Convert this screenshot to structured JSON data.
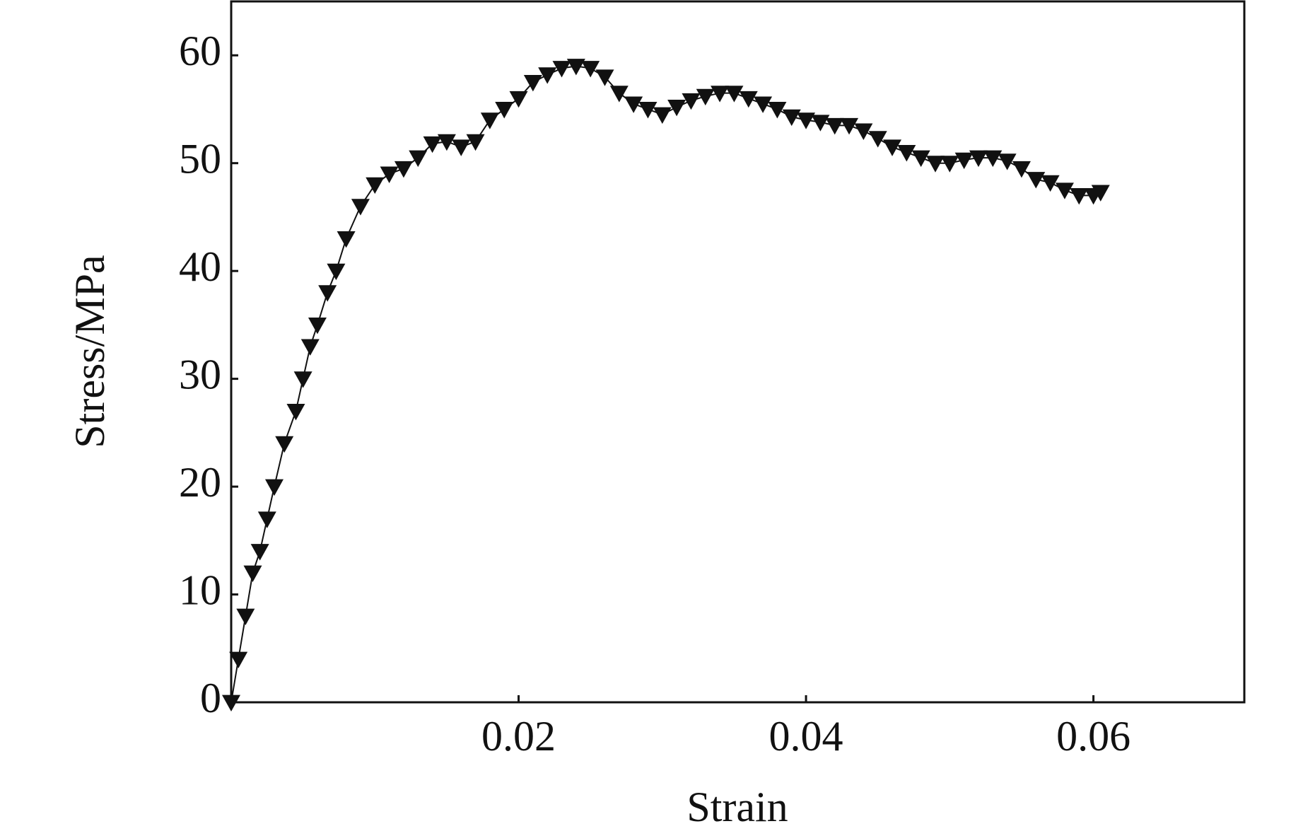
{
  "chart_data": {
    "type": "scatter",
    "x_label": "Strain",
    "y_label": "Stress/MPa",
    "xlim": [
      0,
      0.0705
    ],
    "ylim": [
      0,
      65
    ],
    "xticks": [
      0.02,
      0.04,
      0.06
    ],
    "yticks": [
      0,
      10,
      20,
      30,
      40,
      50,
      60
    ],
    "series": [
      {
        "color": "#111111",
        "marker": "triangle-down",
        "x": [
          0,
          0.0005,
          0.001,
          0.0015,
          0.002,
          0.0025,
          0.003,
          0.0037,
          0.0045,
          0.005,
          0.0055,
          0.006,
          0.0067,
          0.0073,
          0.008,
          0.009,
          0.01,
          0.011,
          0.012,
          0.013,
          0.014,
          0.015,
          0.016,
          0.017,
          0.018,
          0.019,
          0.02,
          0.021,
          0.022,
          0.023,
          0.024,
          0.025,
          0.026,
          0.027,
          0.028,
          0.029,
          0.03,
          0.031,
          0.032,
          0.033,
          0.034,
          0.035,
          0.036,
          0.037,
          0.038,
          0.039,
          0.04,
          0.041,
          0.042,
          0.043,
          0.044,
          0.045,
          0.046,
          0.047,
          0.048,
          0.049,
          0.05,
          0.051,
          0.052,
          0.053,
          0.054,
          0.055,
          0.056,
          0.057,
          0.058,
          0.059,
          0.06,
          0.0605
        ],
        "values": [
          0,
          4,
          8,
          12,
          14,
          17,
          20,
          24,
          27,
          30,
          33,
          35,
          38,
          40,
          43,
          46,
          48,
          49,
          49.5,
          50.5,
          51.8,
          52,
          51.5,
          52,
          54,
          55,
          56,
          57.5,
          58.2,
          58.8,
          59,
          58.8,
          58,
          56.5,
          55.5,
          55,
          54.5,
          55.2,
          55.8,
          56.2,
          56.5,
          56.5,
          56,
          55.5,
          55,
          54.3,
          54,
          53.8,
          53.5,
          53.5,
          53,
          52.3,
          51.5,
          51,
          50.5,
          50,
          50,
          50.3,
          50.5,
          50.5,
          50.2,
          49.5,
          48.5,
          48.2,
          47.5,
          47,
          47,
          47.3
        ]
      }
    ]
  }
}
